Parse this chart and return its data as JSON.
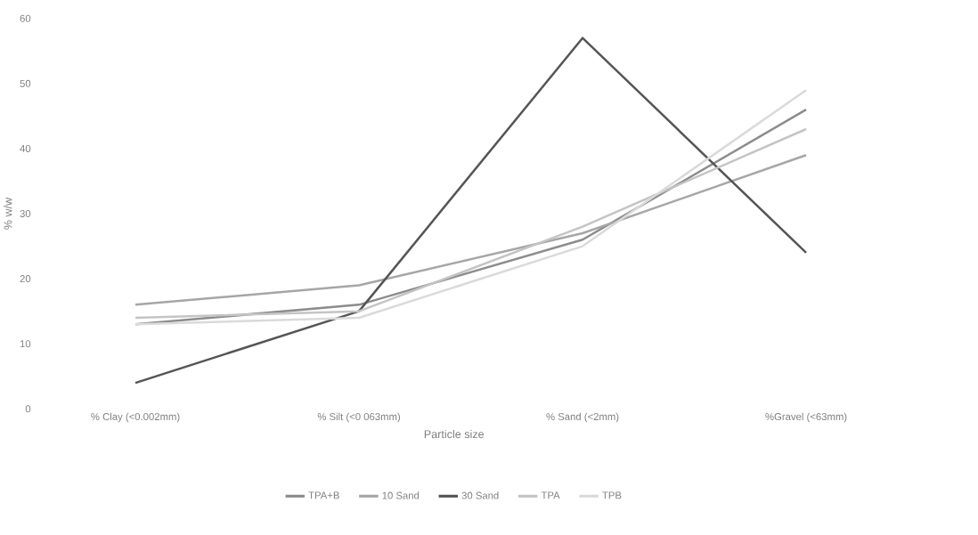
{
  "chart_data": {
    "type": "line",
    "xlabel": "Particle size",
    "ylabel": "% w/w",
    "categories": [
      "% Clay (<0.002mm)",
      "% Silt (<0 063mm)",
      "% Sand (<2mm)",
      "%Gravel (<63mm)"
    ],
    "ylim": [
      0,
      60
    ],
    "yticks": [
      0,
      10,
      20,
      30,
      40,
      50,
      60
    ],
    "grid": false,
    "legend": "bottom",
    "marker": "none",
    "line_style": "solid",
    "series": [
      {
        "name": "TPA+B",
        "color": "#8c8c8c",
        "values": [
          13,
          16,
          26,
          46
        ]
      },
      {
        "name": "10 Sand",
        "color": "#a6a6a6",
        "values": [
          16,
          19,
          27,
          39
        ]
      },
      {
        "name": "30 Sand",
        "color": "#555555",
        "values": [
          4,
          15,
          57,
          24
        ]
      },
      {
        "name": "TPA",
        "color": "#c4c4c4",
        "values": [
          14,
          15,
          28,
          43
        ]
      },
      {
        "name": "TPB",
        "color": "#dadada",
        "values": [
          13,
          14,
          25,
          49
        ]
      }
    ]
  }
}
